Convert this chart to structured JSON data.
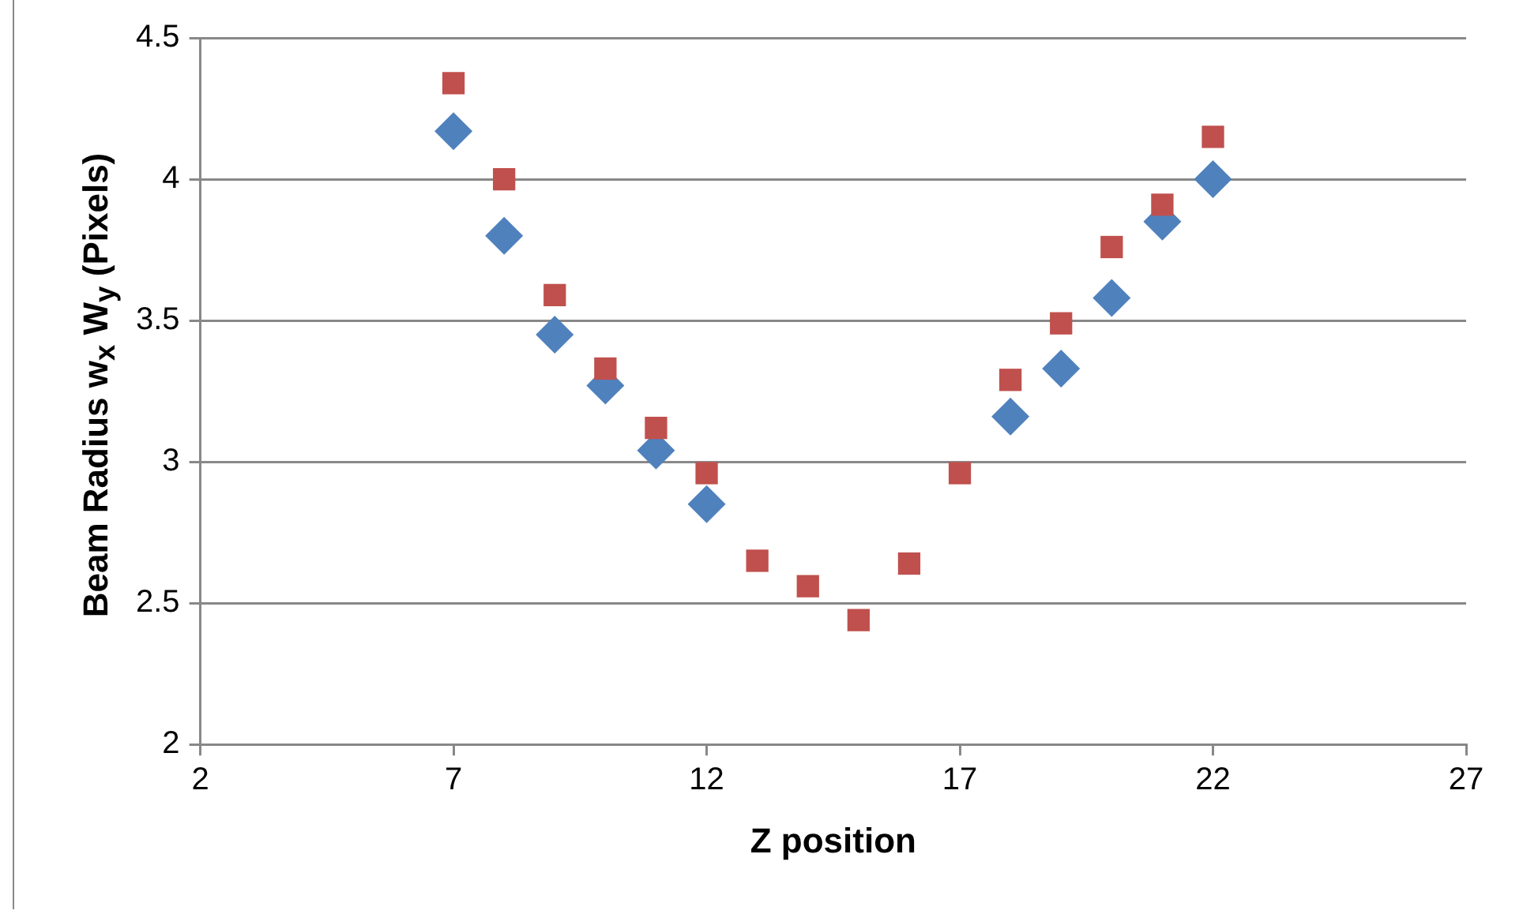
{
  "chart_data": {
    "type": "scatter",
    "xlabel": "Z position",
    "ylabel": "Beam Radius   w$_{x}$ W$_{y}$ (Pixels)",
    "x": [
      7,
      8,
      9,
      10,
      11,
      12,
      13,
      14,
      15,
      16,
      17,
      18,
      19,
      20,
      21,
      22
    ],
    "series": [
      {
        "color": "#4f81bd",
        "marker": "diamond",
        "values": [
          4.17,
          3.8,
          3.45,
          3.27,
          3.04,
          2.85,
          null,
          null,
          null,
          null,
          null,
          3.16,
          3.33,
          3.58,
          3.85,
          4.0
        ]
      },
      {
        "color": "#c0504d",
        "marker": "square",
        "values": [
          4.34,
          4.0,
          3.59,
          3.33,
          3.12,
          2.96,
          2.65,
          2.56,
          2.44,
          2.64,
          2.96,
          3.29,
          3.49,
          3.76,
          3.91,
          4.15
        ]
      }
    ],
    "xlim": [
      2,
      27
    ],
    "xticks": [
      2,
      7,
      12,
      17,
      22,
      27
    ],
    "ylim": [
      2,
      4.5
    ],
    "yticks": [
      2,
      2.5,
      3,
      3.5,
      4,
      4.5
    ],
    "grid": "y",
    "legend": false
  }
}
